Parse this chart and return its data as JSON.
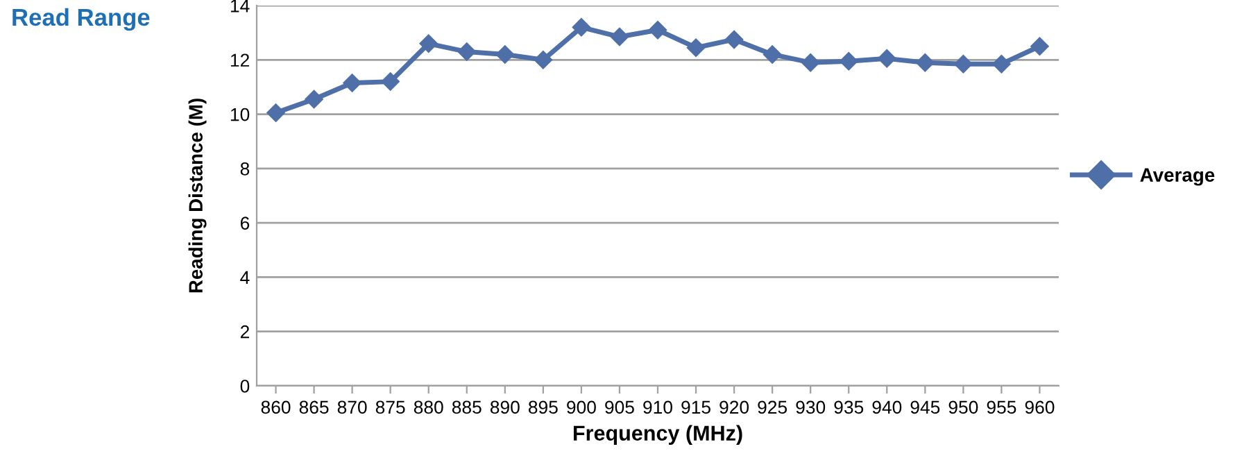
{
  "chart_data": {
    "type": "line",
    "title": "Read Range",
    "xlabel": "Frequency (MHz)",
    "ylabel": "Reading Distance (M)",
    "categories": [
      "860",
      "865",
      "870",
      "875",
      "880",
      "885",
      "890",
      "895",
      "900",
      "905",
      "910",
      "915",
      "920",
      "925",
      "930",
      "935",
      "940",
      "945",
      "950",
      "955",
      "960"
    ],
    "series": [
      {
        "name": "Average",
        "color": "#4f6fa8",
        "values": [
          10.05,
          10.55,
          11.15,
          11.2,
          12.6,
          12.3,
          12.2,
          12.0,
          13.2,
          12.85,
          13.1,
          12.45,
          12.75,
          12.2,
          11.9,
          11.95,
          12.05,
          11.9,
          11.85,
          11.85,
          12.5
        ]
      }
    ],
    "ylim": [
      0,
      14
    ],
    "yticks": [
      0,
      2,
      4,
      6,
      8,
      10,
      12,
      14
    ],
    "grid": "y",
    "legend": "right",
    "marker": "diamond",
    "line_style": "solid"
  }
}
